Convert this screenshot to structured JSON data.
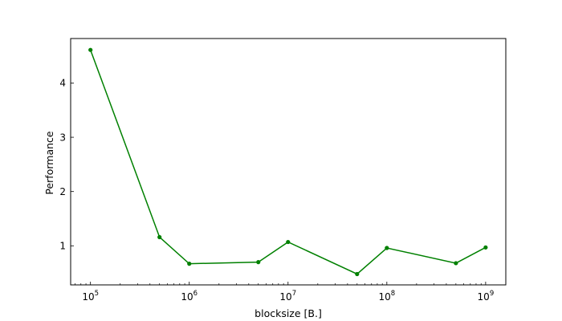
{
  "chart_data": {
    "type": "line",
    "title": "",
    "xlabel": "blocksize [B.]",
    "ylabel": "Performance",
    "xscale": "log",
    "xlim": [
      63000,
      1600000000
    ],
    "ylim": [
      0.28,
      4.82
    ],
    "grid": false,
    "legend": "none",
    "line_color": "#008000",
    "x_ticks": [
      {
        "value": 100000,
        "base": "10",
        "exp": "5"
      },
      {
        "value": 1000000,
        "base": "10",
        "exp": "6"
      },
      {
        "value": 10000000,
        "base": "10",
        "exp": "7"
      },
      {
        "value": 100000000,
        "base": "10",
        "exp": "8"
      },
      {
        "value": 1000000000,
        "base": "10",
        "exp": "9"
      }
    ],
    "y_ticks": [
      {
        "value": 1,
        "label": "1"
      },
      {
        "value": 2,
        "label": "2"
      },
      {
        "value": 3,
        "label": "3"
      },
      {
        "value": 4,
        "label": "4"
      }
    ],
    "series": [
      {
        "x": [
          100000,
          500000,
          1000000,
          5000000,
          10000000,
          50000000,
          100000000,
          500000000,
          1000000000
        ],
        "y": [
          4.61,
          1.16,
          0.67,
          0.7,
          1.07,
          0.48,
          0.96,
          0.68,
          0.97
        ]
      }
    ]
  }
}
